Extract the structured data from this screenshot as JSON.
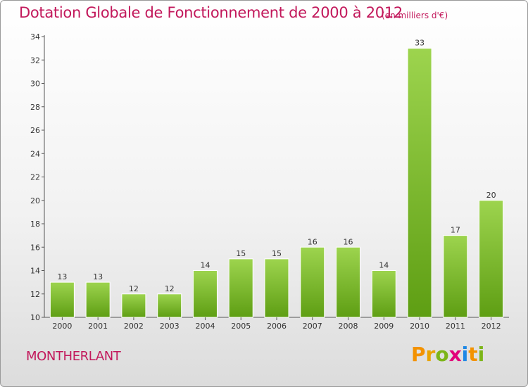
{
  "chart_data": {
    "type": "bar",
    "title": "Dotation Globale de Fonctionnement de 2000 à 2012",
    "subtitle": "(en milliers d'€)",
    "categories": [
      "2000",
      "2001",
      "2002",
      "2003",
      "2004",
      "2005",
      "2006",
      "2007",
      "2008",
      "2009",
      "2010",
      "2011",
      "2012"
    ],
    "values": [
      13,
      13,
      12,
      12,
      14,
      15,
      15,
      16,
      16,
      14,
      33,
      17,
      20
    ],
    "ylim": [
      10,
      34
    ],
    "yticks": [
      10,
      12,
      14,
      16,
      18,
      20,
      22,
      24,
      26,
      28,
      30,
      32,
      34
    ],
    "xlabel": "",
    "ylabel": "",
    "grid": false,
    "legend": "none",
    "bar_color_top": "#9dd44e",
    "bar_color_bottom": "#5e9e13"
  },
  "footer": {
    "commune": "MONTHERLANT",
    "logo": [
      "P",
      "r",
      "o",
      "x",
      "i",
      "t",
      "i"
    ]
  },
  "colors": {
    "title": "#c2185b",
    "logo": [
      "#f39200",
      "#e8a400",
      "#7cb518",
      "#e2007a",
      "#1e88e5",
      "#f39200",
      "#7cb518"
    ]
  }
}
